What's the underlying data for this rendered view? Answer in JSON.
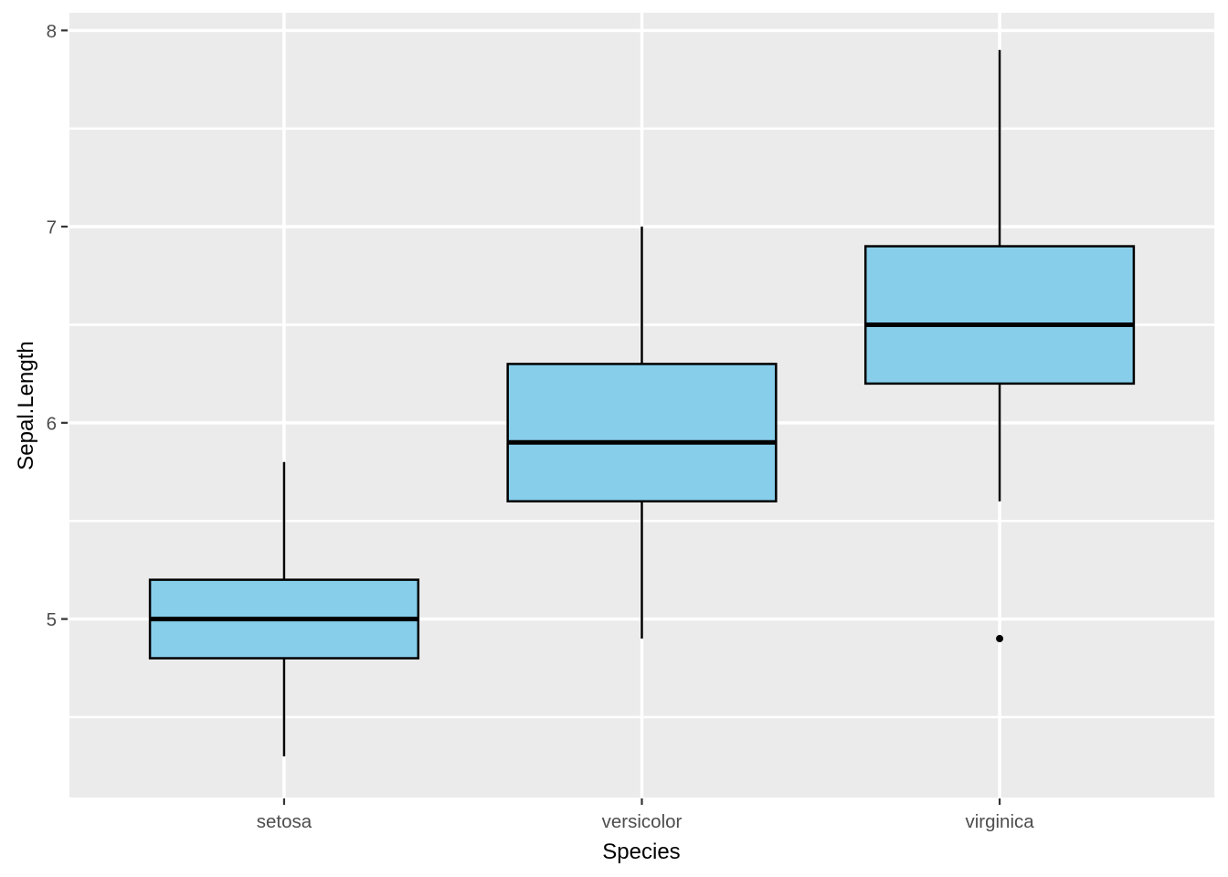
{
  "figure": {
    "background": "#FFFFFF"
  },
  "chart_data": {
    "type": "boxplot",
    "title": "",
    "xlabel": "Species",
    "ylabel": "Sepal.Length",
    "categories": [
      "setosa",
      "versicolor",
      "virginica"
    ],
    "y_ticks": [
      5,
      6,
      7,
      8
    ],
    "y_minor_ticks": [
      4.5,
      5.5,
      6.5,
      7.5
    ],
    "ylim": [
      4.09,
      8.09
    ],
    "grid": true,
    "legend": "none",
    "series": [
      {
        "category": "setosa",
        "min": 4.3,
        "q1": 4.8,
        "median": 5.0,
        "q3": 5.2,
        "max": 5.8,
        "outliers": []
      },
      {
        "category": "versicolor",
        "min": 4.9,
        "q1": 5.6,
        "median": 5.9,
        "q3": 6.3,
        "max": 7.0,
        "outliers": []
      },
      {
        "category": "virginica",
        "min": 5.6,
        "q1": 6.2,
        "median": 6.5,
        "q3": 6.9,
        "max": 7.9,
        "outliers": [
          4.9
        ]
      }
    ],
    "style": {
      "box_fill": "#87CEEB",
      "box_stroke": "#000000",
      "median_color": "#000000",
      "whisker_color": "#000000",
      "outlier_color": "#000000",
      "panel_bg": "#EBEBEB",
      "grid_color": "#FFFFFF",
      "tick_mark_color": "#333333",
      "tick_label_color": "#4D4D4D",
      "axis_title_color": "#000000"
    }
  }
}
